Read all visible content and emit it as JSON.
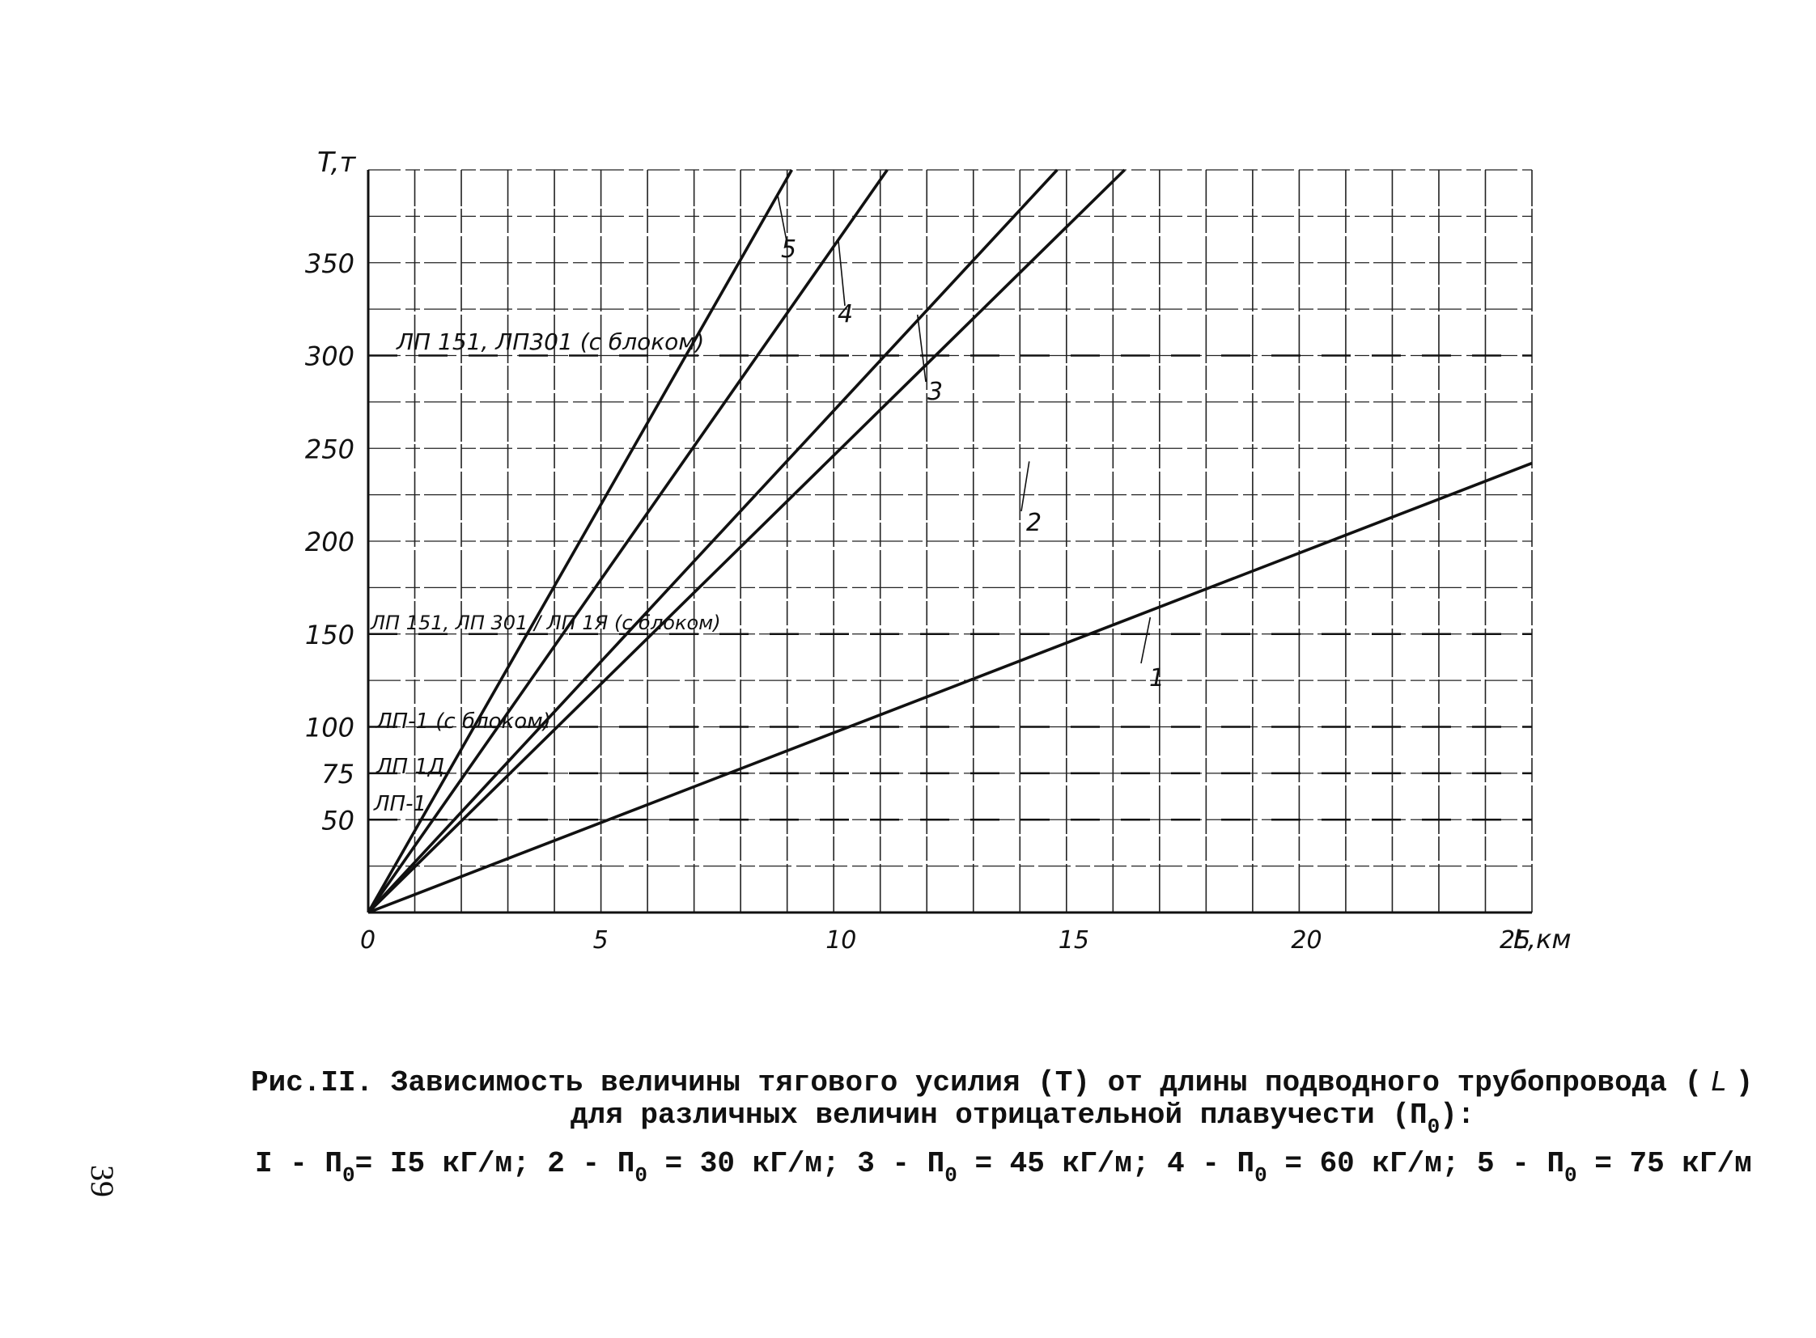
{
  "chart_data": {
    "type": "line",
    "xlabel": "L,км",
    "ylabel": "T,т",
    "xlim": [
      0,
      25
    ],
    "ylim": [
      0,
      400
    ],
    "x_ticks": [
      "0",
      "5",
      "10",
      "15",
      "20",
      "25"
    ],
    "y_ticks": [
      "50",
      "75",
      "100",
      "150",
      "200",
      "250",
      "300",
      "350"
    ],
    "grid": true,
    "series": [
      {
        "name": "1",
        "x": [
          0,
          25
        ],
        "y": [
          0,
          242
        ]
      },
      {
        "name": "2",
        "x": [
          0,
          16.25
        ],
        "y": [
          0,
          400
        ]
      },
      {
        "name": "3",
        "x": [
          0,
          14.8
        ],
        "y": [
          0,
          400
        ]
      },
      {
        "name": "4",
        "x": [
          0,
          11.15
        ],
        "y": [
          0,
          400
        ]
      },
      {
        "name": "5",
        "x": [
          0,
          9.1
        ],
        "y": [
          0,
          400
        ]
      }
    ],
    "reference_lines": [
      {
        "y": 300,
        "label": "ЛП 151, ЛП301 (с блоком)"
      },
      {
        "y": 150,
        "label": "ЛП 151, ЛП 301 / ЛП 1Я (с блоком)"
      },
      {
        "y": 100,
        "label": "ЛП-1 (с блоком)"
      },
      {
        "y": 75,
        "label": "ЛП 1Д"
      },
      {
        "y": 50,
        "label": "ЛП-1"
      }
    ]
  },
  "caption": {
    "line1": "Рис.II. Зависимость величины тягового усилия (T) от длины подводного трубопровода (",
    "line1_symbol": "L",
    "line1_end": ")",
    "line2": "для различных величин отрицательной плавучести (П",
    "line2_sub": "0",
    "line2_end": "):",
    "legend": [
      {
        "num": "I",
        "p": "П",
        "sub": "0",
        "val": "= I5 кГ/м;"
      },
      {
        "num": "2",
        "p": "П",
        "sub": "0",
        "val": "= 30 кГ/м;"
      },
      {
        "num": "3",
        "p": "П",
        "sub": "0",
        "val": "= 45 кГ/м;"
      },
      {
        "num": "4",
        "p": "П",
        "sub": "0",
        "val": "= 60 кГ/м;"
      },
      {
        "num": "5",
        "p": "П",
        "sub": "0",
        "val": "= 75 кГ/м"
      }
    ]
  },
  "page_number": "39"
}
